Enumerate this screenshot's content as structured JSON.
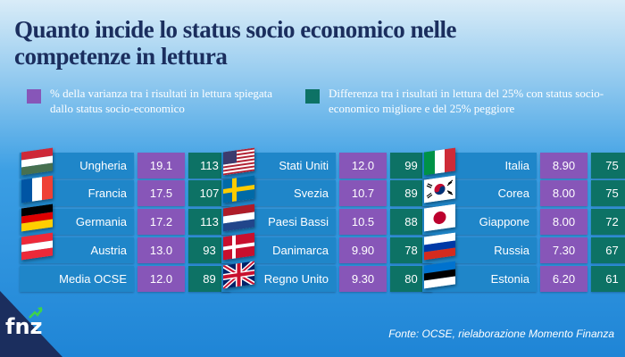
{
  "title": "Quanto incide lo status socio economico nelle competenze in lettura",
  "legend": [
    {
      "text": "% della varianza tra i risultati in lettura spiegata dallo status socio-economico",
      "color": "#8756b8"
    },
    {
      "text": "Differenza tra i risultati in lettura del 25% con status socio-economico migliore e del 25% peggiore",
      "color": "#0d7265"
    }
  ],
  "source": "Fonte: OCSE, rielaborazione Momento Finanza",
  "logo": {
    "text": "fnz"
  },
  "chart_data": {
    "type": "table",
    "columns": [
      "% della varianza tra i risultati in lettura spiegata dallo status socio-economico",
      "Differenza tra i risultati in lettura del 25% con status socio-economico migliore e del 25% peggiore"
    ],
    "groups": [
      {
        "rows": [
          {
            "country": "Ungheria",
            "flag": "hungary-flag-icon",
            "variance": "19.1",
            "diff": "113"
          },
          {
            "country": "Francia",
            "flag": "france-flag-icon",
            "variance": "17.5",
            "diff": "107"
          },
          {
            "country": "Germania",
            "flag": "germany-flag-icon",
            "variance": "17.2",
            "diff": "113"
          },
          {
            "country": "Austria",
            "flag": "austria-flag-icon",
            "variance": "13.0",
            "diff": "93"
          },
          {
            "country": "Media OCSE",
            "flag": "",
            "variance": "12.0",
            "diff": "89"
          }
        ]
      },
      {
        "rows": [
          {
            "country": "Stati Uniti",
            "flag": "usa-flag-icon",
            "variance": "12.0",
            "diff": "99"
          },
          {
            "country": "Svezia",
            "flag": "sweden-flag-icon",
            "variance": "10.7",
            "diff": "89"
          },
          {
            "country": "Paesi Bassi",
            "flag": "netherlands-flag-icon",
            "variance": "10.5",
            "diff": "88"
          },
          {
            "country": "Danimarca",
            "flag": "denmark-flag-icon",
            "variance": "9.90",
            "diff": "78"
          },
          {
            "country": "Regno Unito",
            "flag": "uk-flag-icon",
            "variance": "9.30",
            "diff": "80"
          }
        ]
      },
      {
        "rows": [
          {
            "country": "Italia",
            "flag": "italy-flag-icon",
            "variance": "8.90",
            "diff": "75"
          },
          {
            "country": "Corea",
            "flag": "korea-flag-icon",
            "variance": "8.00",
            "diff": "75"
          },
          {
            "country": "Giappone",
            "flag": "japan-flag-icon",
            "variance": "8.00",
            "diff": "72"
          },
          {
            "country": "Russia",
            "flag": "russia-flag-icon",
            "variance": "7.30",
            "diff": "67"
          },
          {
            "country": "Estonia",
            "flag": "estonia-flag-icon",
            "variance": "6.20",
            "diff": "61"
          }
        ]
      }
    ]
  }
}
